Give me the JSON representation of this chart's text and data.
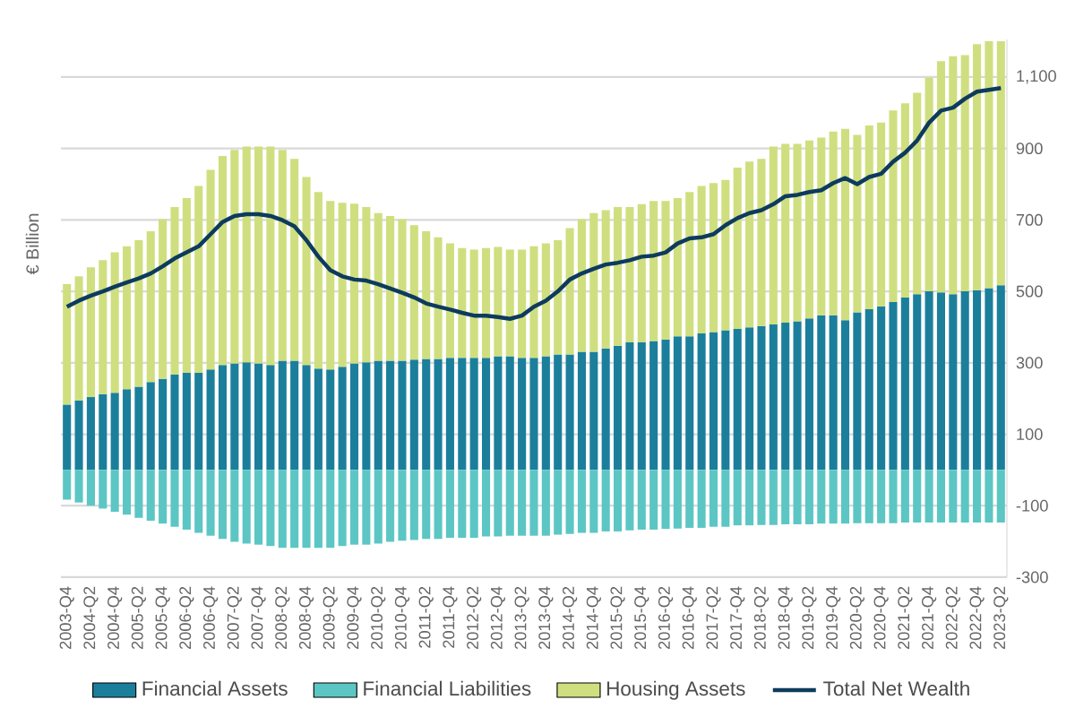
{
  "chart_data": {
    "type": "bar",
    "stacked": true,
    "ylabel": "€ Billion",
    "grid": "y",
    "legend": "bottom",
    "ylim": [
      -300,
      1205
    ],
    "yticks": [
      -300,
      -100,
      100,
      300,
      500,
      700,
      900,
      {
        "value": 1100,
        "label": "1,100"
      }
    ],
    "categories": [
      "2003-Q4",
      null,
      "2004-Q2",
      null,
      "2004-Q4",
      null,
      "2005-Q2",
      null,
      "2005-Q4",
      null,
      "2006-Q2",
      null,
      "2006-Q4",
      null,
      "2007-Q2",
      null,
      "2007-Q4",
      null,
      "2008-Q2",
      null,
      "2008-Q4",
      null,
      "2009-Q2",
      null,
      "2009-Q4",
      null,
      "2010-Q2",
      null,
      "2010-Q4",
      null,
      "2011-Q2",
      null,
      "2011-Q4",
      null,
      "2012-Q2",
      null,
      "2012-Q4",
      null,
      "2013-Q2",
      null,
      "2013-Q4",
      null,
      "2014-Q2",
      null,
      "2014-Q4",
      null,
      "2015-Q2",
      null,
      "2015-Q4",
      null,
      "2016-Q2",
      null,
      "2016-Q4",
      null,
      "2017-Q2",
      null,
      "2017-Q4",
      null,
      "2018-Q2",
      null,
      "2018-Q4",
      null,
      "2019-Q2",
      null,
      "2019-Q4",
      null,
      "2020-Q2",
      null,
      "2020-Q4",
      null,
      "2021-Q2",
      null,
      "2021-Q4",
      null,
      "2022-Q2",
      null,
      "2022-Q4",
      null,
      "2023-Q2"
    ],
    "series": [
      {
        "name": "Financial Assets",
        "color": "#1b7f9c",
        "values": [
          183,
          195,
          204,
          212,
          216,
          226,
          233,
          246,
          255,
          267,
          272,
          272,
          281,
          294,
          298,
          301,
          298,
          294,
          306,
          306,
          294,
          284,
          281,
          289,
          298,
          301,
          306,
          306,
          306,
          309,
          311,
          311,
          314,
          314,
          314,
          314,
          318,
          318,
          314,
          314,
          318,
          323,
          323,
          331,
          331,
          340,
          348,
          357,
          357,
          361,
          365,
          374,
          374,
          382,
          386,
          391,
          395,
          399,
          403,
          407,
          412,
          416,
          424,
          433,
          433,
          419,
          441,
          450,
          458,
          470,
          483,
          492,
          500,
          497,
          492,
          500,
          503,
          509,
          517
        ]
      },
      {
        "name": "Financial Liabilities",
        "color": "#5cc6c4",
        "values": [
          -83,
          -91,
          -100,
          -108,
          -117,
          -125,
          -134,
          -142,
          -150,
          -159,
          -167,
          -176,
          -184,
          -193,
          -201,
          -206,
          -209,
          -213,
          -218,
          -218,
          -218,
          -218,
          -218,
          -213,
          -209,
          -209,
          -206,
          -201,
          -198,
          -196,
          -193,
          -193,
          -190,
          -190,
          -190,
          -186,
          -186,
          -184,
          -184,
          -184,
          -184,
          -181,
          -179,
          -176,
          -176,
          -172,
          -172,
          -169,
          -167,
          -167,
          -165,
          -164,
          -162,
          -162,
          -159,
          -159,
          -155,
          -155,
          -154,
          -154,
          -152,
          -152,
          -152,
          -150,
          -150,
          -150,
          -149,
          -149,
          -149,
          -149,
          -147,
          -147,
          -147,
          -147,
          -147,
          -147,
          -147,
          -147,
          -147
        ]
      },
      {
        "name": "Housing Assets",
        "color": "#cfdf7f",
        "values": [
          337,
          347,
          363,
          375,
          393,
          400,
          410,
          422,
          447,
          469,
          489,
          523,
          559,
          585,
          598,
          604,
          607,
          611,
          590,
          565,
          526,
          494,
          472,
          459,
          447,
          435,
          413,
          405,
          396,
          376,
          357,
          340,
          320,
          307,
          303,
          307,
          306,
          299,
          303,
          312,
          316,
          320,
          354,
          371,
          388,
          387,
          388,
          379,
          387,
          392,
          388,
          387,
          404,
          413,
          417,
          421,
          451,
          464,
          468,
          498,
          501,
          497,
          498,
          497,
          514,
          536,
          497,
          514,
          514,
          536,
          543,
          564,
          598,
          647,
          666,
          661,
          689,
          691,
          683
        ]
      },
      {
        "name": "Total Net Wealth",
        "type": "line",
        "color": "#0d3b5e",
        "marker": "none",
        "values": [
          457,
          474,
          488,
          500,
          513,
          525,
          536,
          550,
          570,
          592,
          609,
          626,
          660,
          694,
          711,
          716,
          716,
          711,
          699,
          682,
          643,
          597,
          559,
          542,
          533,
          530,
          520,
          508,
          496,
          483,
          466,
          457,
          449,
          440,
          432,
          432,
          428,
          423,
          432,
          457,
          474,
          500,
          533,
          550,
          563,
          575,
          580,
          587,
          597,
          600,
          609,
          634,
          648,
          651,
          660,
          685,
          705,
          719,
          727,
          744,
          766,
          770,
          778,
          783,
          803,
          817,
          800,
          820,
          829,
          863,
          888,
          922,
          972,
          1006,
          1014,
          1039,
          1059,
          1064,
          1069
        ]
      }
    ]
  }
}
